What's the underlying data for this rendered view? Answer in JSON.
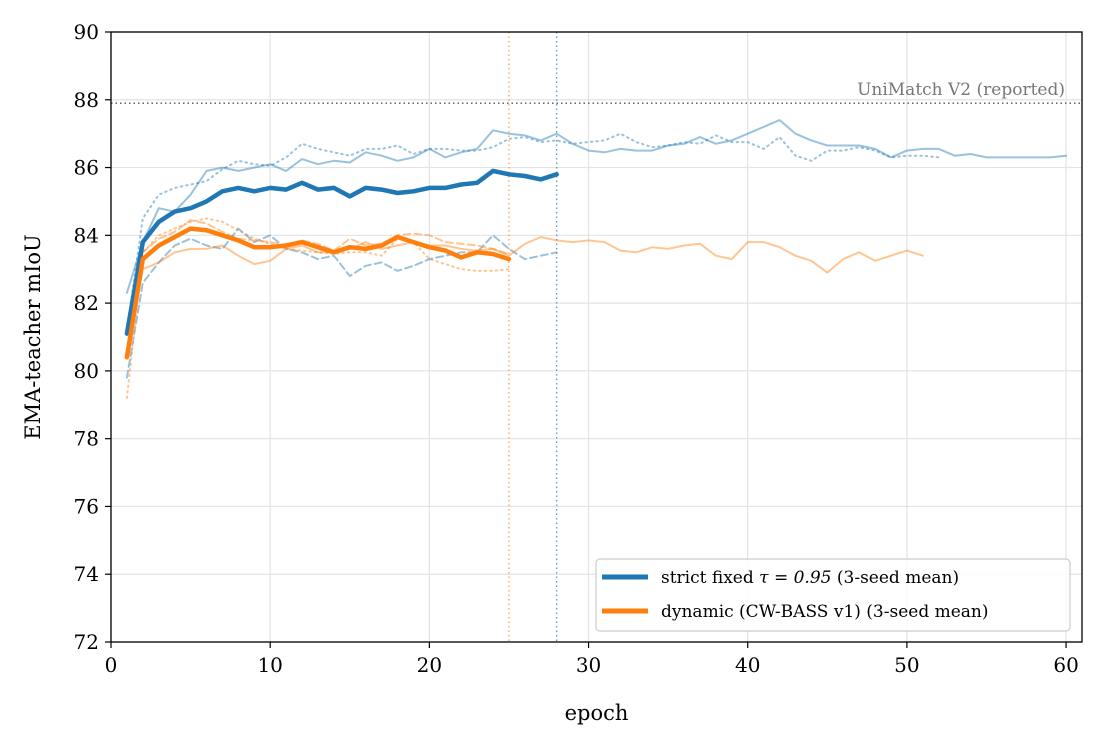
{
  "chart_data": {
    "type": "line",
    "xlabel": "epoch",
    "ylabel": "EMA-teacher mIoU",
    "xlim": [
      0,
      61
    ],
    "ylim": [
      72,
      90
    ],
    "xticks": [
      "0",
      "10",
      "20",
      "30",
      "40",
      "50",
      "60"
    ],
    "xtick_values": [
      0,
      10,
      20,
      30,
      40,
      50,
      60
    ],
    "yticks": [
      "72",
      "74",
      "76",
      "78",
      "80",
      "82",
      "84",
      "86",
      "88",
      "90"
    ],
    "ytick_values": [
      72,
      74,
      76,
      78,
      80,
      82,
      84,
      86,
      88,
      90
    ],
    "grid": true,
    "legend_position": "lower-right",
    "colors": {
      "strict": "#1f77b4",
      "dynamic": "#ff7f0e",
      "reference": "#555555"
    },
    "reference_line": {
      "y": 87.9,
      "label": "UniMatch V2 (reported)"
    },
    "vlines": [
      {
        "x": 25,
        "color": "#ff7f0e"
      },
      {
        "x": 28,
        "color": "#1f77b4"
      }
    ],
    "legend": [
      {
        "key": "strict",
        "prefix": "strict fixed ",
        "math": "τ = 0.95",
        "suffix": " (3-seed mean)"
      },
      {
        "key": "dynamic",
        "label": "dynamic (CW-BASS v1) (3-seed mean)"
      }
    ],
    "series": [
      {
        "group": "strict",
        "role": "mean",
        "style": "solid",
        "x_start": 1,
        "values": [
          81.1,
          83.8,
          84.4,
          84.7,
          84.8,
          85.0,
          85.3,
          85.4,
          85.3,
          85.4,
          85.35,
          85.55,
          85.35,
          85.4,
          85.15,
          85.4,
          85.35,
          85.25,
          85.3,
          85.4,
          85.4,
          85.5,
          85.55,
          85.9,
          85.8,
          85.75,
          85.65,
          85.8
        ]
      },
      {
        "group": "strict",
        "role": "seed",
        "style": "solid",
        "x_start": 1,
        "values": [
          82.3,
          83.8,
          84.8,
          84.7,
          85.2,
          85.9,
          86.0,
          85.9,
          86.0,
          86.1,
          85.9,
          86.25,
          86.1,
          86.2,
          86.15,
          86.45,
          86.35,
          86.2,
          86.3,
          86.55,
          86.3,
          86.45,
          86.55,
          87.1,
          87.0,
          86.95,
          86.8,
          87.0,
          86.7,
          86.5,
          86.45,
          86.55,
          86.5,
          86.5,
          86.65,
          86.7,
          86.9,
          86.7,
          86.8,
          87.0,
          87.2,
          87.4,
          87.0,
          86.8,
          86.65,
          86.65,
          86.65,
          86.55,
          86.3,
          86.5,
          86.55,
          86.55,
          86.35,
          86.4,
          86.3,
          86.3,
          86.3,
          86.3,
          86.3,
          86.35
        ]
      },
      {
        "group": "strict",
        "role": "seed",
        "style": "dotted",
        "x_start": 1,
        "values": [
          81.2,
          84.5,
          85.2,
          85.4,
          85.5,
          85.6,
          85.95,
          86.2,
          86.1,
          86.05,
          86.3,
          86.7,
          86.55,
          86.45,
          86.35,
          86.55,
          86.55,
          86.65,
          86.4,
          86.55,
          86.55,
          86.5,
          86.5,
          86.6,
          86.85,
          86.9,
          86.75,
          86.8,
          86.7,
          86.75,
          86.8,
          87.0,
          86.75,
          86.6,
          86.65,
          86.75,
          86.7,
          86.95,
          86.75,
          86.75,
          86.55,
          86.9,
          86.35,
          86.2,
          86.5,
          86.5,
          86.6,
          86.5,
          86.3,
          86.35,
          86.35,
          86.3
        ]
      },
      {
        "group": "strict",
        "role": "seed",
        "style": "dashed",
        "x_start": 1,
        "values": [
          79.8,
          82.6,
          83.2,
          83.7,
          83.9,
          83.7,
          83.6,
          84.2,
          83.8,
          84.0,
          83.6,
          83.5,
          83.3,
          83.4,
          82.8,
          83.1,
          83.2,
          82.95,
          83.1,
          83.3,
          83.4,
          83.5,
          83.5,
          84.0,
          83.6,
          83.3,
          83.4,
          83.5
        ]
      },
      {
        "group": "dynamic",
        "role": "mean",
        "style": "solid",
        "x_start": 1,
        "values": [
          80.4,
          83.3,
          83.7,
          83.95,
          84.2,
          84.15,
          84.0,
          83.85,
          83.65,
          83.65,
          83.7,
          83.8,
          83.65,
          83.5,
          83.65,
          83.6,
          83.7,
          83.95,
          83.8,
          83.65,
          83.55,
          83.35,
          83.5,
          83.45,
          83.3
        ]
      },
      {
        "group": "dynamic",
        "role": "seed",
        "style": "solid",
        "x_start": 1,
        "values": [
          80.5,
          83.0,
          83.2,
          83.5,
          83.6,
          83.6,
          83.7,
          83.4,
          83.15,
          83.25,
          83.6,
          83.7,
          83.5,
          83.5,
          83.6,
          83.8,
          83.6,
          83.7,
          83.8,
          83.7,
          83.7,
          83.6,
          83.55,
          83.6,
          83.4,
          83.75,
          83.95,
          83.85,
          83.8,
          83.85,
          83.8,
          83.55,
          83.5,
          83.65,
          83.6,
          83.7,
          83.75,
          83.4,
          83.3,
          83.8,
          83.8,
          83.65,
          83.4,
          83.25,
          82.9,
          83.3,
          83.5,
          83.25,
          83.4,
          83.55,
          83.4
        ]
      },
      {
        "group": "dynamic",
        "role": "seed",
        "style": "dotted",
        "x_start": 1,
        "values": [
          79.2,
          83.5,
          84.0,
          84.2,
          84.4,
          84.5,
          84.4,
          84.15,
          83.9,
          83.75,
          83.6,
          83.55,
          83.5,
          83.45,
          83.5,
          83.5,
          83.4,
          83.9,
          83.8,
          83.3,
          83.15,
          83.0,
          82.95,
          82.95,
          83.0
        ]
      },
      {
        "group": "dynamic",
        "role": "seed",
        "style": "dashed",
        "x_start": 1,
        "values": [
          80.6,
          83.5,
          83.9,
          84.1,
          84.45,
          84.35,
          84.1,
          83.9,
          83.85,
          83.8,
          83.7,
          83.85,
          83.75,
          83.55,
          83.9,
          83.7,
          83.75,
          84.0,
          84.05,
          84.0,
          83.8,
          83.75,
          83.7,
          83.6,
          83.45
        ]
      }
    ]
  }
}
